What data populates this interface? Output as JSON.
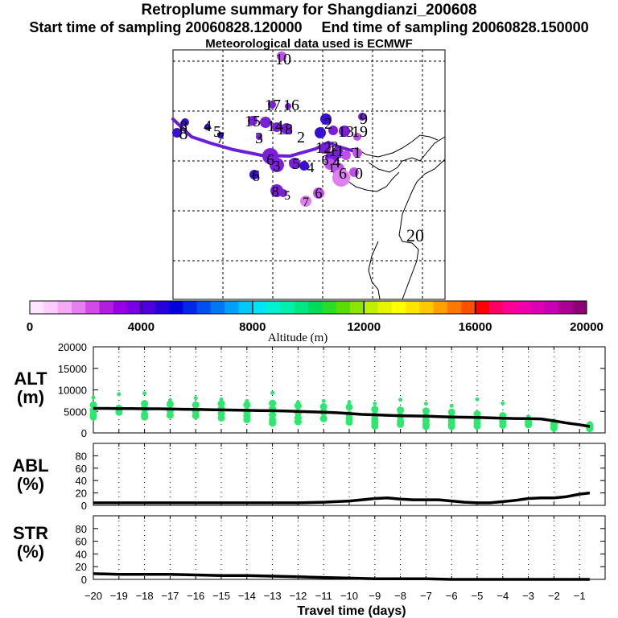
{
  "title": "Retroplume summary for Shangdianzi_200608",
  "start_label": "Start time of sampling 20060828.120000",
  "end_label": "End time of sampling 20060828.150000",
  "met_label": "Meteorological data used is ECMWF",
  "colorbar": {
    "label": "Altitude (m)",
    "ticks": [
      "0",
      "4000",
      "8000",
      "12000",
      "16000",
      "20000"
    ],
    "colors": [
      "#ffe6ff",
      "#ffccff",
      "#f5aaf5",
      "#e680f0",
      "#d24be6",
      "#b21edc",
      "#9600e6",
      "#7800e6",
      "#5000dc",
      "#2800dc",
      "#0000dc",
      "#0028e6",
      "#0050f0",
      "#0078f5",
      "#00a0fa",
      "#00c8fa",
      "#00e6f5",
      "#00f0d2",
      "#00f0aa",
      "#00e682",
      "#00dc5a",
      "#28dc28",
      "#5adc00",
      "#8ce600",
      "#bef000",
      "#e6f500",
      "#ffff00",
      "#ffe600",
      "#ffc800",
      "#ffa000",
      "#ff7800",
      "#ff5000",
      "#ff0000",
      "#ff0064",
      "#ff0096",
      "#f000aa",
      "#dc00b4",
      "#c800b4",
      "#aa0096",
      "#8c0078"
    ]
  },
  "map": {
    "labels": [
      "10",
      "17",
      "16",
      "15",
      "14",
      "18",
      "13",
      "19",
      "3",
      "2",
      "9",
      "8",
      "4",
      "5",
      "7",
      "12",
      "1",
      "11",
      "6",
      "20"
    ],
    "colors": {
      "track": "#6a1ed8",
      "deep": "#3a10d0",
      "mid": "#7b1fd8",
      "light": "#c050ea",
      "pale": "#df80f0"
    }
  },
  "chart_data": [
    {
      "type": "scatter",
      "name": "ALT",
      "ylabel": "ALT (m)",
      "ylim": [
        0,
        20000
      ],
      "yticks": [
        0,
        5000,
        10000,
        15000,
        20000
      ],
      "x": [
        -20.0,
        -19.5,
        -19.0,
        -18.5,
        -18.0,
        -17.5,
        -17.0,
        -16.5,
        -16.0,
        -15.5,
        -15.0,
        -14.5,
        -14.0,
        -13.5,
        -13.0,
        -12.5,
        -12.0,
        -11.5,
        -11.0,
        -10.5,
        -10.0,
        -9.5,
        -9.0,
        -8.5,
        -8.0,
        -7.5,
        -7.0,
        -6.5,
        -6.0,
        -5.5,
        -5.0,
        -4.5,
        -4.0,
        -3.5,
        -3.0,
        -2.5,
        -2.0,
        -1.5,
        -1.0,
        -0.6
      ],
      "mean": [
        5700,
        5700,
        5650,
        5650,
        5600,
        5600,
        5550,
        5500,
        5450,
        5400,
        5350,
        5300,
        5250,
        5200,
        5150,
        5100,
        5000,
        4900,
        4800,
        4700,
        4500,
        4300,
        4200,
        4100,
        4000,
        3950,
        3900,
        3800,
        3700,
        3650,
        3600,
        3500,
        3400,
        3350,
        3300,
        3250,
        2800,
        2300,
        1900,
        1500
      ],
      "scatter": [
        {
          "x": -20.0,
          "y": [
            8200,
            6500,
            5200,
            4300,
            3700
          ]
        },
        {
          "x": -19.0,
          "y": [
            9000,
            5700,
            4800
          ]
        },
        {
          "x": -18.0,
          "y": [
            9200,
            6800,
            5600,
            4300,
            3700
          ]
        },
        {
          "x": -17.0,
          "y": [
            7600,
            6700,
            5200,
            4100
          ]
        },
        {
          "x": -16.0,
          "y": [
            8100,
            6500,
            5000,
            4000
          ]
        },
        {
          "x": -15.0,
          "y": [
            7800,
            6800,
            5600,
            4500,
            3500
          ]
        },
        {
          "x": -14.0,
          "y": [
            7400,
            6500,
            5000,
            4000,
            3100
          ]
        },
        {
          "x": -13.0,
          "y": [
            9300,
            6900,
            5600,
            4200,
            3100,
            2300
          ]
        },
        {
          "x": -12.0,
          "y": [
            7100,
            6300,
            4700,
            3500,
            2600
          ]
        },
        {
          "x": -11.0,
          "y": [
            7400,
            6100,
            4800,
            3300
          ]
        },
        {
          "x": -10.0,
          "y": [
            7100,
            6000,
            4300,
            3300,
            2500
          ]
        },
        {
          "x": -9.0,
          "y": [
            6800,
            5500,
            4100,
            3100,
            2300,
            1600
          ]
        },
        {
          "x": -8.0,
          "y": [
            7700,
            5300,
            3900,
            2700,
            2000
          ]
        },
        {
          "x": -7.0,
          "y": [
            6800,
            5100,
            3800,
            2900,
            2000,
            1500
          ]
        },
        {
          "x": -6.0,
          "y": [
            6300,
            4800,
            3600,
            2800,
            2000,
            1500
          ]
        },
        {
          "x": -5.0,
          "y": [
            7800,
            4400,
            3300,
            2400,
            1600
          ]
        },
        {
          "x": -4.0,
          "y": [
            6900,
            4000,
            2600,
            1800
          ]
        },
        {
          "x": -3.0,
          "y": [
            3800,
            2600,
            1900
          ]
        },
        {
          "x": -2.0,
          "y": [
            2900,
            2100,
            1500,
            1100
          ]
        },
        {
          "x": -0.6,
          "y": [
            2300,
            1800,
            1300,
            1000
          ]
        }
      ]
    },
    {
      "type": "line",
      "name": "ABL",
      "ylabel": "ABL (%)",
      "ylim": [
        0,
        100
      ],
      "yticks": [
        0,
        20,
        40,
        60,
        80
      ],
      "x": [
        -20.0,
        -19.0,
        -18.0,
        -17.0,
        -16.0,
        -15.0,
        -14.0,
        -13.0,
        -12.0,
        -11.0,
        -10.0,
        -9.5,
        -9.0,
        -8.5,
        -8.0,
        -7.5,
        -7.0,
        -6.5,
        -6.0,
        -5.5,
        -5.0,
        -4.5,
        -4.0,
        -3.5,
        -3.0,
        -2.5,
        -2.0,
        -1.5,
        -1.0,
        -0.6
      ],
      "values": [
        4,
        4,
        4,
        4,
        4,
        4,
        4,
        4,
        4,
        5,
        7,
        9,
        11,
        12,
        10,
        9,
        9,
        9,
        7,
        5,
        4,
        4,
        6,
        8,
        11,
        12,
        12,
        14,
        18,
        20
      ]
    },
    {
      "type": "line",
      "name": "STR",
      "ylabel": "STR (%)",
      "ylim": [
        0,
        100
      ],
      "yticks": [
        0,
        20,
        40,
        60,
        80
      ],
      "x": [
        -20.0,
        -19.0,
        -18.0,
        -17.0,
        -16.0,
        -15.0,
        -14.0,
        -13.0,
        -12.0,
        -11.0,
        -10.0,
        -9.0,
        -8.0,
        -7.0,
        -6.0,
        -5.0,
        -4.0,
        -3.0,
        -2.0,
        -1.0,
        -0.6
      ],
      "values": [
        9,
        8,
        8,
        8,
        7,
        6,
        6,
        5,
        4,
        3,
        2,
        1,
        1,
        1,
        0,
        0,
        0,
        0,
        0,
        0,
        0
      ]
    }
  ],
  "panel_labels": [
    {
      "l1": "ALT",
      "l2": "(m)"
    },
    {
      "l1": "ABL",
      "l2": "(%)"
    },
    {
      "l1": "STR",
      "l2": "(%)"
    }
  ],
  "xaxis": {
    "label": "Travel time (days)",
    "ticks": [
      "−20",
      "−19",
      "−18",
      "−17",
      "−16",
      "−15",
      "−14",
      "−13",
      "−12",
      "−11",
      "−10",
      "−9",
      "−8",
      "−7",
      "−6",
      "−5",
      "−4",
      "−3",
      "−2",
      "−1"
    ]
  }
}
